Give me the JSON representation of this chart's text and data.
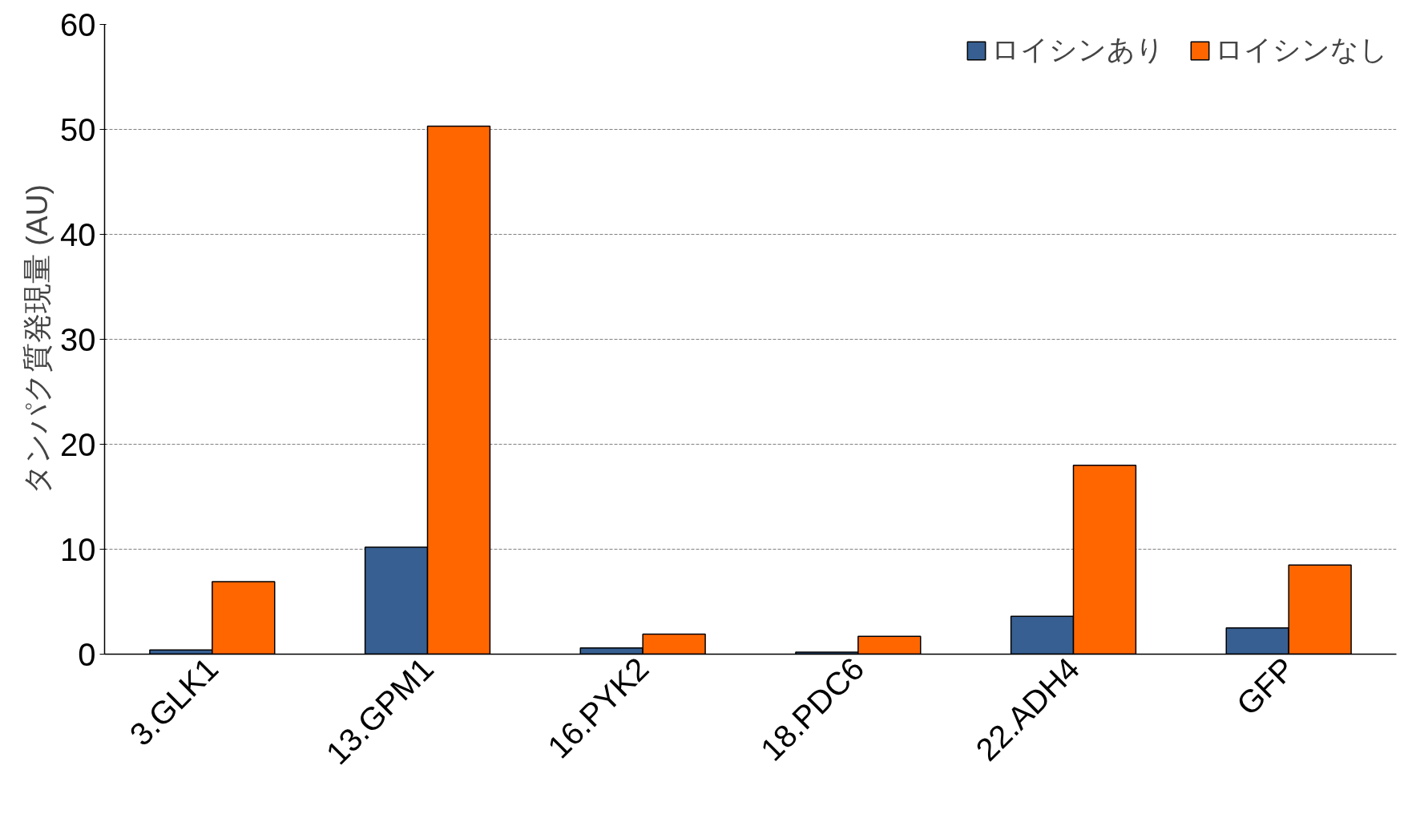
{
  "chart_data": {
    "type": "bar",
    "ylabel": "タンパク質発現量 (AU)",
    "categories": [
      "3.GLK1",
      "13.GPM1",
      "16.PYK2",
      "18.PDC6",
      "22.ADH4",
      "GFP"
    ],
    "series": [
      {
        "name": "ロイシンあり",
        "color": "#375f91",
        "values": [
          0.4,
          10.2,
          0.6,
          0.2,
          3.6,
          2.5
        ]
      },
      {
        "name": "ロイシンなし",
        "color": "#ff6600",
        "values": [
          6.9,
          50.3,
          1.9,
          1.7,
          18.0,
          8.5
        ]
      }
    ],
    "ylim": [
      0,
      60
    ],
    "yticks": [
      0,
      10,
      20,
      30,
      40,
      50,
      60
    ],
    "grid": "y",
    "legend": "top right"
  }
}
